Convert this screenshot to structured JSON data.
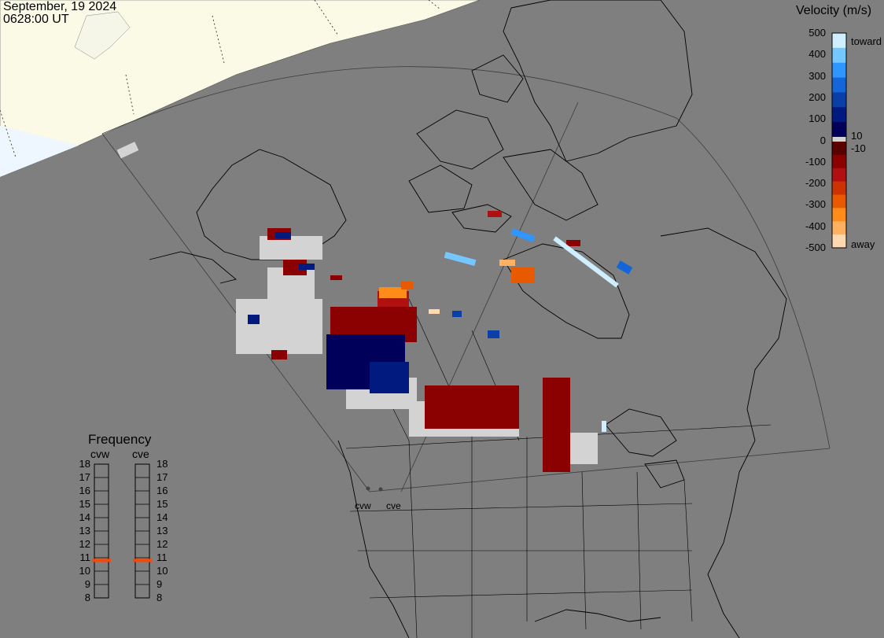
{
  "header": {
    "date": "September, 19 2024",
    "time": "0628:00 UT"
  },
  "velocity_scale": {
    "title": "Velocity (m/s)",
    "ticks": [
      "500",
      "400",
      "300",
      "200",
      "100",
      "0",
      "-100",
      "-200",
      "-300",
      "-400",
      "-500"
    ],
    "inner_labels": [
      "10",
      "-10"
    ],
    "end_labels": {
      "toward": "toward",
      "away": "away"
    },
    "colors": {
      "toward": [
        "#cfeeff",
        "#74c7ff",
        "#2f95ff",
        "#1466d8",
        "#0a3fa8",
        "#001a80",
        "#00005a"
      ],
      "away": [
        "#5a0000",
        "#8b0000",
        "#b01010",
        "#cc3300",
        "#e85a00",
        "#ff8c1a",
        "#ffb060",
        "#ffd8b0"
      ],
      "ground": "#d3d3d3"
    }
  },
  "frequency": {
    "title": "Frequency",
    "radars": [
      {
        "name": "cvw",
        "mhz": 10.8
      },
      {
        "name": "cve",
        "mhz": 10.8
      }
    ],
    "ticks": [
      "18",
      "17",
      "16",
      "15",
      "14",
      "13",
      "12",
      "11",
      "10",
      "9",
      "8"
    ],
    "marker_color": "#ff4500"
  },
  "sites": [
    {
      "name": "cvw"
    },
    {
      "name": "cve"
    }
  ],
  "map_colors": {
    "background": "#7f7f7f",
    "daylight": "#fafae6",
    "daylight_edge": "#f0f8ff",
    "outline": "#000000"
  }
}
